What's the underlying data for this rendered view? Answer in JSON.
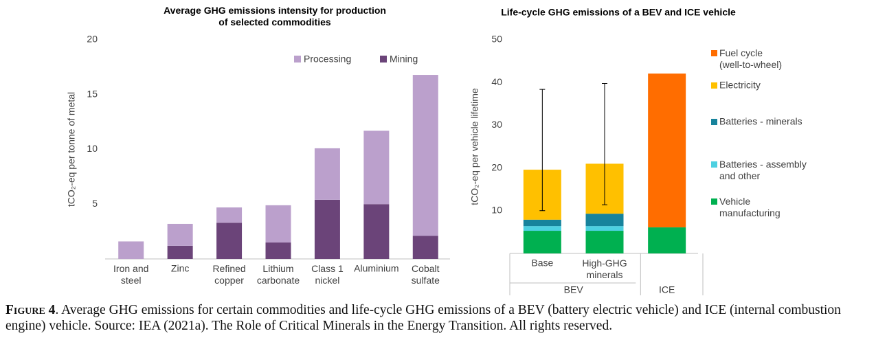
{
  "chart_data": [
    {
      "type": "bar",
      "stacked": true,
      "title": "Average GHG emissions intensity for production\nof selected commodities",
      "y_label": "tCO₂-eq per tonne of metal",
      "categories": [
        "Iron and\nsteel",
        "Zinc",
        "Refined\ncopper",
        "Lithium\ncarbonate",
        "Class 1\nnickel",
        "Aluminium",
        "Cobalt\nsulfate"
      ],
      "series": [
        {
          "name": "Mining",
          "color": "#6b4479",
          "values": [
            0,
            1.2,
            3.3,
            1.5,
            5.4,
            5.0,
            2.1
          ]
        },
        {
          "name": "Processing",
          "color": "#bba0cc",
          "values": [
            1.6,
            2.0,
            1.4,
            3.4,
            4.7,
            6.7,
            14.7
          ]
        }
      ],
      "ylim": [
        0,
        20
      ],
      "yticks": [
        5,
        10,
        15,
        20
      ],
      "grid": false,
      "legend": "top"
    },
    {
      "type": "bar",
      "stacked": true,
      "title": "Life-cycle GHG emissions of a BEV and ICE vehicle",
      "y_label": "tCO₂-eq per vehicle lifetime",
      "categories": [
        "Base",
        "High-GHG\nminerals",
        null
      ],
      "groups": [
        {
          "name": "BEV",
          "span": 2
        },
        {
          "name": "ICE",
          "span": 1
        }
      ],
      "series": [
        {
          "name": "Vehicle\nmanufacturing",
          "color": "#00b050",
          "values": [
            5.3,
            5.3,
            6.1
          ]
        },
        {
          "name": "Batteries - assembly\nand other",
          "color": "#4dd0e1",
          "values": [
            1.1,
            1.1,
            null
          ]
        },
        {
          "name": "Batteries - minerals",
          "color": "#17839c",
          "values": [
            1.5,
            2.9,
            null
          ]
        },
        {
          "name": "Electricity",
          "color": "#ffc000",
          "values": [
            11.7,
            11.7,
            null
          ]
        },
        {
          "name": "Fuel cycle\n(well-to-wheel)",
          "color": "#ff6d00",
          "values": [
            null,
            null,
            36.0
          ]
        }
      ],
      "error_range": [
        [
          10.0,
          38.4
        ],
        [
          11.4,
          39.8
        ],
        null
      ],
      "ylim": [
        0,
        50
      ],
      "yticks": [
        10,
        20,
        30,
        40,
        50
      ],
      "grid": false,
      "legend": "right"
    }
  ],
  "caption": {
    "label": "Figure 4",
    "text": ". Average GHG emissions for certain commodities and life-cycle GHG emissions of a BEV (battery electric vehicle) and ICE (internal combustion engine) vehicle. Source: IEA (2021a). The Role of Critical Minerals in the Energy Transition. All rights reserved."
  }
}
